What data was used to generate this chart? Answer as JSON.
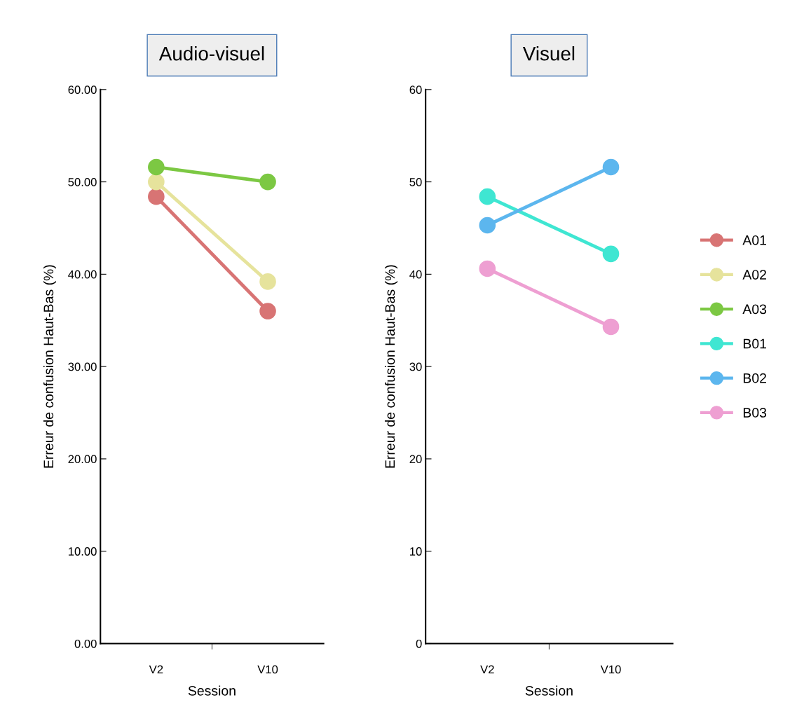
{
  "chart_data": [
    {
      "type": "line",
      "title": "Audio-visuel",
      "xlabel": "Session",
      "ylabel": "Erreur de confusion Haut-Bas (%)",
      "categories": [
        "V2",
        "V10"
      ],
      "ylim": [
        0,
        60
      ],
      "yticks": [
        {
          "value": 0,
          "label": "0.00"
        },
        {
          "value": 10,
          "label": "10.00"
        },
        {
          "value": 20,
          "label": "20.00"
        },
        {
          "value": 30,
          "label": "30.00"
        },
        {
          "value": 40,
          "label": "40.00"
        },
        {
          "value": 50,
          "label": "50.00"
        },
        {
          "value": 60,
          "label": "60.00"
        }
      ],
      "marker": "circle",
      "legend": "right",
      "series": [
        {
          "name": "A01",
          "color": "#d87474",
          "values": [
            48.4,
            36.0
          ]
        },
        {
          "name": "A02",
          "color": "#e6e39c",
          "values": [
            50.0,
            39.2
          ]
        },
        {
          "name": "A03",
          "color": "#7cc843",
          "values": [
            51.6,
            50.0
          ]
        }
      ]
    },
    {
      "type": "line",
      "title": "Visuel",
      "xlabel": "Session",
      "ylabel": "Erreur de confusion Haut-Bas (%)",
      "categories": [
        "V2",
        "V10"
      ],
      "ylim": [
        0,
        60
      ],
      "yticks": [
        0,
        10,
        20,
        30,
        40,
        50,
        60
      ],
      "marker": "circle",
      "legend": "right",
      "series": [
        {
          "name": "B01",
          "color": "#3fe6d2",
          "values": [
            48.4,
            42.2
          ]
        },
        {
          "name": "B02",
          "color": "#5cb6ee",
          "values": [
            45.3,
            51.6
          ]
        },
        {
          "name": "B03",
          "color": "#ee9fd2",
          "values": [
            40.6,
            34.3
          ]
        }
      ]
    }
  ]
}
